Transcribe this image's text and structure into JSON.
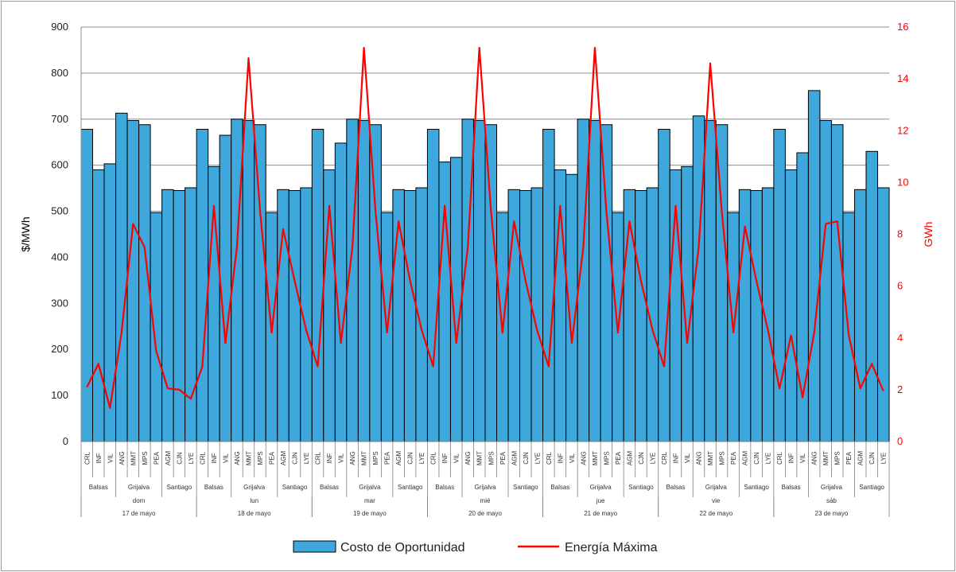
{
  "chart_data": {
    "type": "bar",
    "title": "",
    "ylabel_left": "$/MWh",
    "ylabel_right": "GWh",
    "ylim_left": [
      0,
      900
    ],
    "ylim_right": [
      0,
      16
    ],
    "yticks_left": [
      "0",
      "100",
      "200",
      "300",
      "400",
      "500",
      "600",
      "700",
      "800",
      "900"
    ],
    "yticks_right": [
      "0",
      "2",
      "4",
      "6",
      "8",
      "10",
      "12",
      "14",
      "16"
    ],
    "grid": true,
    "legend_position": "bottom",
    "colors": {
      "bar": "#3ea7dc",
      "bar_edge": "#000000",
      "line": "#ff0000",
      "grid": "#8c8c8c"
    },
    "days": [
      {
        "day": "dom",
        "date": "17 de mayo"
      },
      {
        "day": "lun",
        "date": "18 de mayo"
      },
      {
        "day": "mar",
        "date": "19 de mayo"
      },
      {
        "day": "mié",
        "date": "20 de mayo"
      },
      {
        "day": "jue",
        "date": "21 de mayo"
      },
      {
        "day": "vie",
        "date": "22 de mayo"
      },
      {
        "day": "sáb",
        "date": "23 de mayo"
      }
    ],
    "groups": [
      {
        "name": "Balsas",
        "plants": [
          "CRL",
          "INF",
          "VIL"
        ]
      },
      {
        "name": "Grijalva",
        "plants": [
          "ANG",
          "MMT",
          "MPS",
          "PEA"
        ]
      },
      {
        "name": "Santiago",
        "plants": [
          "AGM",
          "CJN",
          "LYE"
        ]
      }
    ],
    "series": [
      {
        "name": "Costo de Oportunidad",
        "axis": "left",
        "kind": "bar",
        "values": [
          [
            678,
            590,
            603,
            713,
            697,
            688,
            497,
            547,
            545,
            551
          ],
          [
            678,
            597,
            665,
            700,
            697,
            688,
            497,
            547,
            545,
            551
          ],
          [
            678,
            590,
            648,
            700,
            697,
            688,
            497,
            547,
            545,
            551
          ],
          [
            678,
            607,
            617,
            700,
            697,
            688,
            497,
            547,
            545,
            551
          ],
          [
            678,
            590,
            580,
            700,
            697,
            688,
            497,
            547,
            545,
            551
          ],
          [
            678,
            590,
            597,
            707,
            697,
            688,
            497,
            547,
            545,
            551
          ],
          [
            678,
            590,
            627,
            762,
            697,
            688,
            497,
            547,
            630,
            551
          ]
        ]
      },
      {
        "name": "Energía Máxima",
        "axis": "right",
        "kind": "line",
        "values": [
          [
            2.1,
            3.0,
            1.3,
            4.2,
            8.4,
            7.5,
            3.5,
            2.05,
            2.0,
            1.65
          ],
          [
            2.9,
            9.1,
            3.8,
            7.5,
            14.8,
            8.9,
            4.2,
            8.2,
            6.2,
            4.3
          ],
          [
            2.9,
            9.1,
            3.8,
            7.5,
            15.2,
            8.9,
            4.2,
            8.5,
            6.2,
            4.3
          ],
          [
            2.9,
            9.1,
            3.8,
            7.5,
            15.2,
            8.9,
            4.2,
            8.5,
            6.2,
            4.3
          ],
          [
            2.9,
            9.1,
            3.8,
            7.5,
            15.2,
            8.9,
            4.2,
            8.5,
            6.2,
            4.3
          ],
          [
            2.9,
            9.1,
            3.8,
            7.5,
            14.6,
            8.9,
            4.2,
            8.3,
            6.2,
            4.3
          ],
          [
            2.05,
            4.1,
            1.7,
            4.2,
            8.4,
            8.5,
            4.1,
            2.05,
            3.0,
            1.95
          ]
        ]
      }
    ]
  }
}
